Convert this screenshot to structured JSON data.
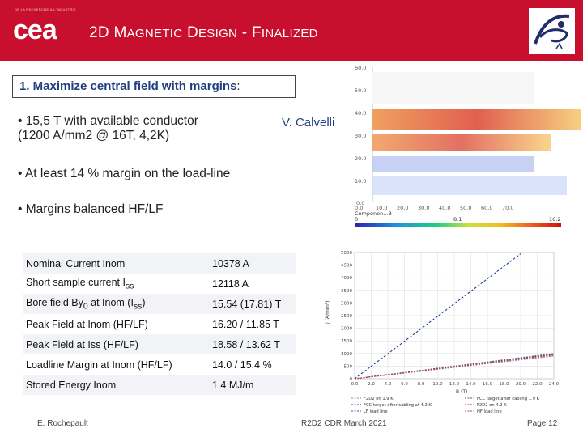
{
  "header": {
    "title_parts": [
      "2D M",
      "AGNETIC",
      " D",
      "ESIGN",
      " - F",
      "INALIZED"
    ],
    "cea_tagline": "DE LA RECHERCHE À L'INDUSTRIE",
    "logo_text": "cea",
    "accent": "#c8102e"
  },
  "goal": {
    "lead": "1.  Maximize central field with margins",
    "colon": ":"
  },
  "bullets": [
    {
      "line1": "•  15,5 T with available conductor",
      "line2": "(1200 A/mm2 @ 16T, 4,2K)"
    },
    {
      "line1": "•  At least 14 % margin on the load-line"
    },
    {
      "line1": "•  Margins balanced HF/LF"
    }
  ],
  "author": "V. Calvelli",
  "fieldmap": {
    "tick_labels": [
      "60.0",
      "50.0",
      "40.0",
      "30.0",
      "20.0",
      "10.0",
      "0.0"
    ],
    "x_ticks": [
      "0.0",
      "10.0",
      "20.0",
      "30.0",
      "40.0",
      "50.0",
      "60.0",
      "70.0"
    ],
    "colorbar_label": "Componen...B",
    "colorbar_ticks": [
      "0",
      "8.1",
      "16.2"
    ]
  },
  "specs": [
    {
      "label": "Nominal Current Inom",
      "value": "10378 A"
    },
    {
      "label": "Short sample current I",
      "label_sub": "ss",
      "value": "12118 A"
    },
    {
      "label": "Bore field By",
      "label_sub": "0",
      "label_tail": " at Inom (I",
      "label_sub2": "ss",
      "label_tail2": ")",
      "value": "15.54 (17.81) T"
    },
    {
      "label": "Peak Field  at Inom (HF/LF)",
      "value": "16.20 / 11.85 T"
    },
    {
      "label": "Peak Field at Iss (HF/LF)",
      "value": "18.58 / 13.62 T"
    },
    {
      "label": "Loadline Margin at Inom (HF/LF)",
      "value": "14.0 / 15.4 %"
    },
    {
      "label": "Stored Energy Inom",
      "value": "1.4 MJ/m"
    }
  ],
  "chart_data": {
    "type": "line",
    "xlabel": "B (T)",
    "ylabel": "J (A/mm²)",
    "xlim": [
      0,
      24
    ],
    "ylim": [
      0,
      5000
    ],
    "x_ticks": [
      "0.0",
      "2.0",
      "4.0",
      "6.0",
      "8.0",
      "10.0",
      "12.0",
      "14.0",
      "16.0",
      "18.0",
      "20.0",
      "22.0",
      "24.0"
    ],
    "y_ticks": [
      "0",
      "500",
      "1000",
      "1500",
      "2000",
      "2500",
      "3000",
      "3500",
      "4000",
      "4500",
      "5000"
    ],
    "series": [
      {
        "name": "F2D2 on 1.9 K",
        "color": "#8a8a8a",
        "points": [
          [
            0,
            0
          ],
          [
            24,
            900
          ]
        ]
      },
      {
        "name": "FCC target after cabling 1.9 K",
        "color": "#7f5a3a",
        "points": [
          [
            0,
            0
          ],
          [
            24,
            940
          ]
        ]
      },
      {
        "name": "FCC target after cabling at 4.2 K",
        "color": "#1f3f9a",
        "points": [
          [
            0,
            0
          ],
          [
            20,
            4950
          ]
        ]
      },
      {
        "name": "F2D2 on 4.2 K",
        "color": "#b03030",
        "points": [
          [
            0,
            0
          ],
          [
            24,
            980
          ]
        ]
      },
      {
        "name": "LF load line",
        "color": "#4060c0",
        "points": [
          [
            0,
            0
          ],
          [
            24,
            1000
          ]
        ]
      },
      {
        "name": "HF load line",
        "color": "#c04040",
        "points": [
          [
            0,
            0
          ],
          [
            24,
            960
          ]
        ]
      }
    ],
    "colors": {
      "blue": "#1f3f9a",
      "red": "#b03030"
    }
  },
  "footer": {
    "author": "E. Rochepault",
    "event": "R2D2 CDR March 2021",
    "page": "Page 12"
  }
}
